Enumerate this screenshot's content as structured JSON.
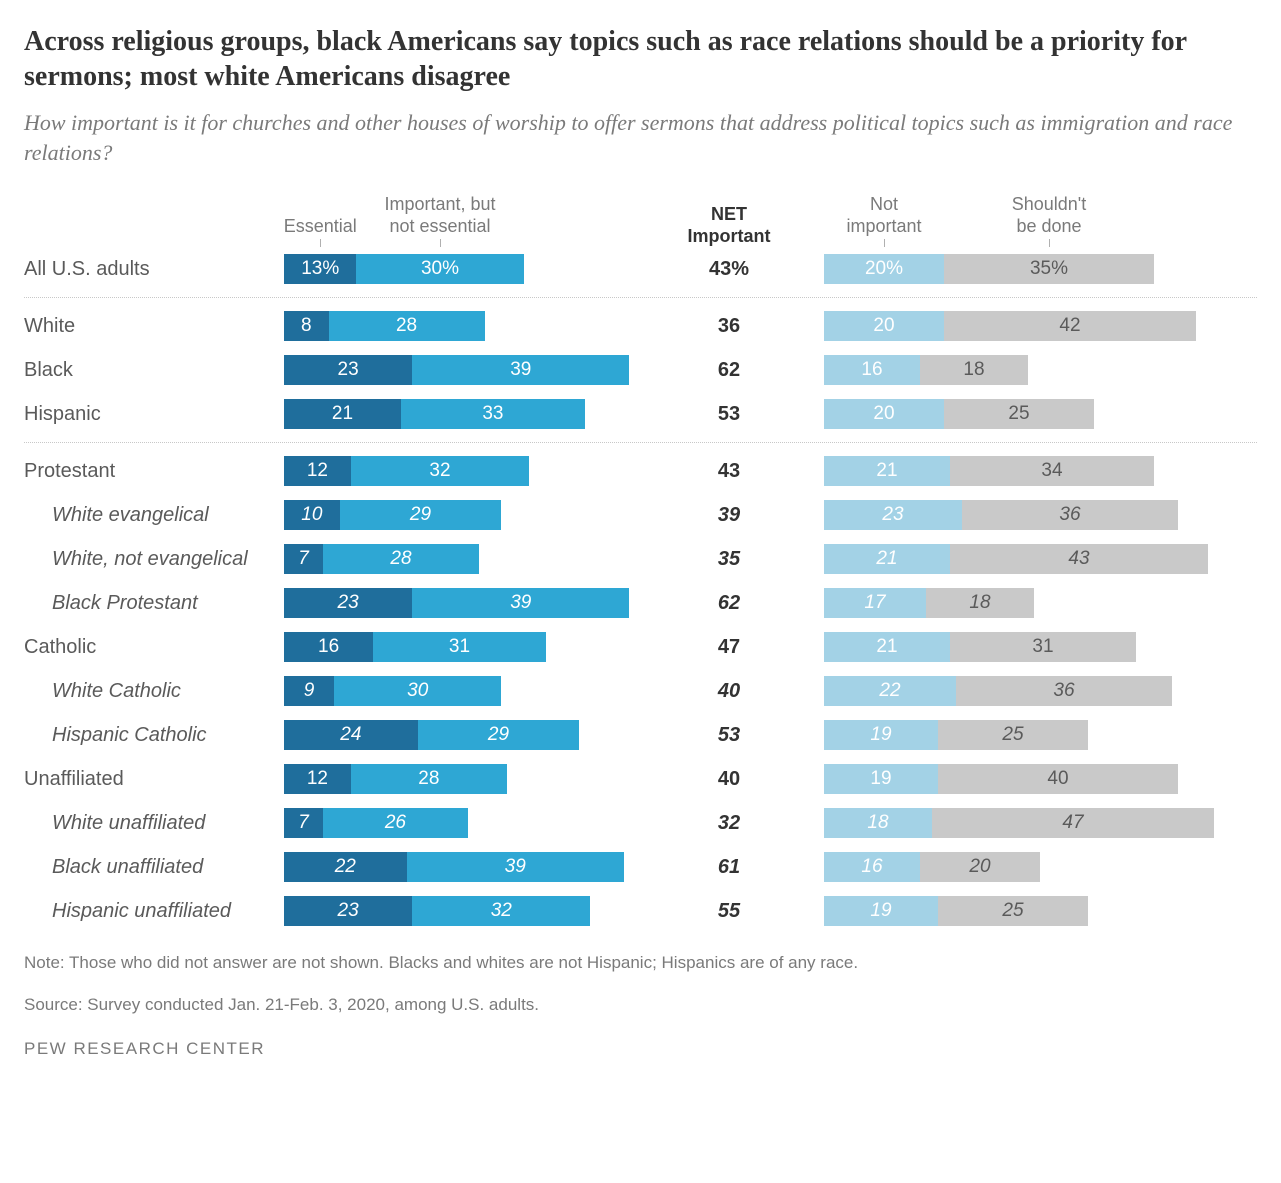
{
  "title": "Across religious groups, black Americans say topics such as race relations should be a priority for sermons; most white Americans disagree",
  "subtitle": "How important is it for churches and other houses of worship to offer sermons that address political topics such as immigration and race relations?",
  "headers": {
    "essential": "Essential",
    "important_not_essential": "Important, but\nnot essential",
    "net": "NET\nImportant",
    "not_important": "Not\nimportant",
    "shouldnt": "Shouldn't\nbe done"
  },
  "colors": {
    "essential": "#1f6e9c",
    "important": "#2ea7d4",
    "not_important": "#a3d2e6",
    "shouldnt": "#c9c9c9",
    "bg": "#ffffff",
    "text": "#333333",
    "muted": "#7a7a7a"
  },
  "fontsizes": {
    "title": 28,
    "subtitle": 22,
    "header": 18,
    "net_header": 18,
    "label": 20,
    "value": 19,
    "net": 20,
    "note": 17,
    "brand": 17
  },
  "scale": {
    "left_max": 70,
    "right_max": 70
  },
  "groups": [
    {
      "rows": [
        {
          "label": "All U.S. adults",
          "indent": false,
          "italic": false,
          "pct_suffix": true,
          "essential": 13,
          "important": 30,
          "net": 43,
          "not_important": 20,
          "shouldnt": 35
        }
      ]
    },
    {
      "rows": [
        {
          "label": "White",
          "indent": false,
          "italic": false,
          "essential": 8,
          "important": 28,
          "net": 36,
          "not_important": 20,
          "shouldnt": 42
        },
        {
          "label": "Black",
          "indent": false,
          "italic": false,
          "essential": 23,
          "important": 39,
          "net": 62,
          "not_important": 16,
          "shouldnt": 18
        },
        {
          "label": "Hispanic",
          "indent": false,
          "italic": false,
          "essential": 21,
          "important": 33,
          "net": 53,
          "not_important": 20,
          "shouldnt": 25
        }
      ]
    },
    {
      "rows": [
        {
          "label": "Protestant",
          "indent": false,
          "italic": false,
          "essential": 12,
          "important": 32,
          "net": 43,
          "not_important": 21,
          "shouldnt": 34
        },
        {
          "label": "White evangelical",
          "indent": true,
          "italic": true,
          "essential": 10,
          "important": 29,
          "net": 39,
          "not_important": 23,
          "shouldnt": 36
        },
        {
          "label": "White, not evangelical",
          "indent": true,
          "italic": true,
          "essential": 7,
          "important": 28,
          "net": 35,
          "not_important": 21,
          "shouldnt": 43
        },
        {
          "label": "Black Protestant",
          "indent": true,
          "italic": true,
          "essential": 23,
          "important": 39,
          "net": 62,
          "not_important": 17,
          "shouldnt": 18
        },
        {
          "label": "Catholic",
          "indent": false,
          "italic": false,
          "essential": 16,
          "important": 31,
          "net": 47,
          "not_important": 21,
          "shouldnt": 31
        },
        {
          "label": "White Catholic",
          "indent": true,
          "italic": true,
          "essential": 9,
          "important": 30,
          "net": 40,
          "not_important": 22,
          "shouldnt": 36
        },
        {
          "label": "Hispanic Catholic",
          "indent": true,
          "italic": true,
          "essential": 24,
          "important": 29,
          "net": 53,
          "not_important": 19,
          "shouldnt": 25
        },
        {
          "label": "Unaffiliated",
          "indent": false,
          "italic": false,
          "essential": 12,
          "important": 28,
          "net": 40,
          "not_important": 19,
          "shouldnt": 40
        },
        {
          "label": "White unaffiliated",
          "indent": true,
          "italic": true,
          "essential": 7,
          "important": 26,
          "net": 32,
          "not_important": 18,
          "shouldnt": 47
        },
        {
          "label": "Black unaffiliated",
          "indent": true,
          "italic": true,
          "essential": 22,
          "important": 39,
          "net": 61,
          "not_important": 16,
          "shouldnt": 20
        },
        {
          "label": "Hispanic unaffiliated",
          "indent": true,
          "italic": true,
          "essential": 23,
          "important": 32,
          "net": 55,
          "not_important": 19,
          "shouldnt": 25
        }
      ]
    }
  ],
  "note_line1": "Note: Those who did not answer are not shown. Blacks and whites are not Hispanic; Hispanics are of any race.",
  "note_line2": "Source: Survey conducted Jan. 21-Feb. 3, 2020, among U.S. adults.",
  "brand": "PEW RESEARCH CENTER"
}
